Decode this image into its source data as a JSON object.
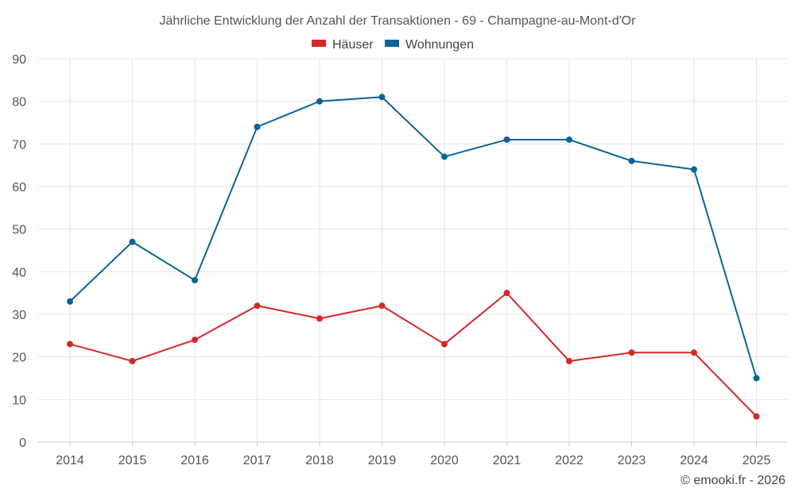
{
  "chart_data": {
    "type": "line",
    "title": "Jährliche Entwicklung der Anzahl der Transaktionen - 69 - Champagne-au-Mont-d'Or",
    "categories": [
      "2014",
      "2015",
      "2016",
      "2017",
      "2018",
      "2019",
      "2020",
      "2021",
      "2022",
      "2023",
      "2024",
      "2025"
    ],
    "series": [
      {
        "name": "Häuser",
        "color": "#d62728",
        "values": [
          23,
          19,
          24,
          32,
          29,
          32,
          23,
          35,
          19,
          21,
          21,
          6
        ]
      },
      {
        "name": "Wohnungen",
        "color": "#0a6496",
        "values": [
          33,
          47,
          38,
          74,
          80,
          81,
          67,
          71,
          71,
          66,
          64,
          15
        ]
      }
    ],
    "ylim": [
      0,
      90
    ],
    "yticks": [
      0,
      10,
      20,
      30,
      40,
      50,
      60,
      70,
      80,
      90
    ],
    "grid": true,
    "legend": "top-center",
    "xlabel": "",
    "ylabel": ""
  },
  "credit": "© emooki.fr - 2026"
}
